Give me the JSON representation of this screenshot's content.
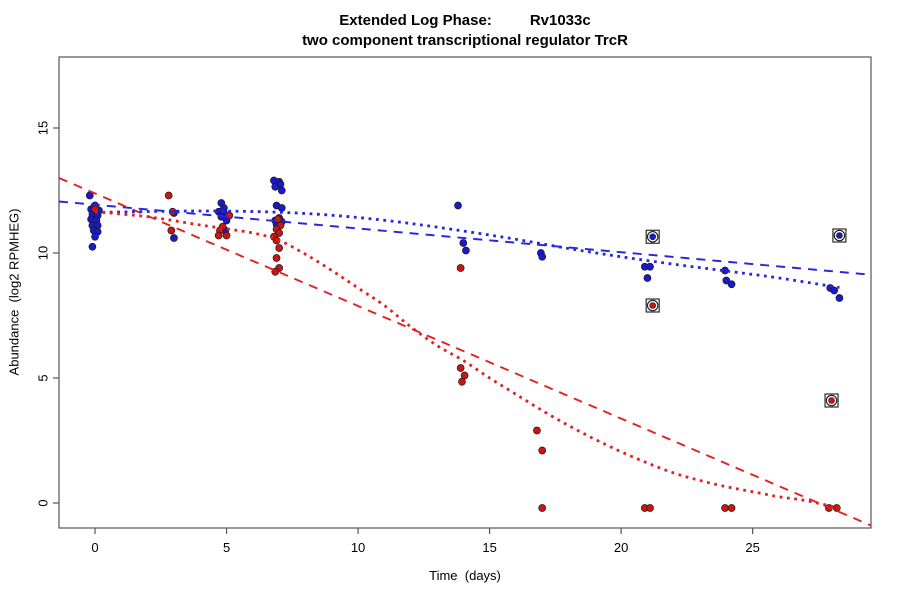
{
  "header": {
    "title_main": "Extended Log Phase:",
    "title_gene": "Rv1033c",
    "subtitle": "two component transcriptional regulator TrcR"
  },
  "chart_data": {
    "type": "scatter",
    "title": "Extended Log Phase:  Rv1033c",
    "subtitle": "two component transcriptional regulator TrcR",
    "xlabel": "Time  (days)",
    "ylabel": "Abundance  (log2 RPMHEG)",
    "x_ticks": [
      0,
      5,
      10,
      15,
      20,
      25
    ],
    "y_ticks": [
      0,
      5,
      10,
      15
    ],
    "xlim": [
      -1.37,
      29.5
    ],
    "ylim": [
      -1.0,
      17.84
    ],
    "grid": "off",
    "legend": "none",
    "colors": {
      "blue_point": "#1a1acc",
      "red_point": "#cc1414",
      "blue_line": "#2626e0",
      "red_line": "#e32020",
      "axis": "#555555",
      "marker_outline": "#1a1a1a"
    },
    "series": [
      {
        "name": "blue-points",
        "kind": "points",
        "color": "#1a1acc",
        "points": [
          [
            -0.2,
            12.3
          ],
          [
            0,
            11.9
          ],
          [
            -0.15,
            11.75
          ],
          [
            0.15,
            11.7
          ],
          [
            -0.1,
            11.55
          ],
          [
            0.1,
            11.5
          ],
          [
            -0.15,
            11.35
          ],
          [
            0.05,
            11.3
          ],
          [
            -0.1,
            11.1
          ],
          [
            0.1,
            11.1
          ],
          [
            -0.05,
            10.9
          ],
          [
            0.1,
            10.85
          ],
          [
            0,
            10.65
          ],
          [
            -0.1,
            10.25
          ],
          [
            3,
            11.6
          ],
          [
            3,
            10.6
          ],
          [
            4.8,
            12.0
          ],
          [
            4.9,
            11.8
          ],
          [
            4.7,
            11.65
          ],
          [
            4.9,
            11.6
          ],
          [
            5.1,
            11.5
          ],
          [
            4.8,
            11.45
          ],
          [
            5,
            11.3
          ],
          [
            4.95,
            10.9
          ],
          [
            6.8,
            12.9
          ],
          [
            7,
            12.85
          ],
          [
            7.05,
            12.75
          ],
          [
            6.85,
            12.65
          ],
          [
            7.1,
            12.5
          ],
          [
            6.9,
            11.9
          ],
          [
            7.1,
            11.8
          ],
          [
            7,
            11.4
          ],
          [
            6.85,
            11.3
          ],
          [
            7.1,
            11.25
          ],
          [
            6.9,
            11.15
          ],
          [
            13.8,
            11.9
          ],
          [
            14,
            10.4
          ],
          [
            14.1,
            10.1
          ],
          [
            16.95,
            10.0
          ],
          [
            17,
            9.85
          ],
          [
            20.9,
            9.45
          ],
          [
            21.1,
            9.45
          ],
          [
            21,
            9.0
          ],
          [
            23.95,
            9.3
          ],
          [
            24,
            8.9
          ],
          [
            24.2,
            8.75
          ],
          [
            27.95,
            8.6
          ],
          [
            28.1,
            8.5
          ],
          [
            28.3,
            8.2
          ]
        ]
      },
      {
        "name": "red-points",
        "kind": "points",
        "color": "#cc1414",
        "points": [
          [
            0,
            11.75
          ],
          [
            2.8,
            12.3
          ],
          [
            2.95,
            11.65
          ],
          [
            2.9,
            10.9
          ],
          [
            5.1,
            11.5
          ],
          [
            4.85,
            11.05
          ],
          [
            4.75,
            10.9
          ],
          [
            4.7,
            10.7
          ],
          [
            5,
            10.7
          ],
          [
            6.95,
            11.35
          ],
          [
            7.05,
            11.1
          ],
          [
            6.9,
            10.95
          ],
          [
            7,
            10.8
          ],
          [
            6.8,
            10.65
          ],
          [
            6.9,
            10.5
          ],
          [
            7,
            10.2
          ],
          [
            6.9,
            9.8
          ],
          [
            7,
            9.4
          ],
          [
            6.85,
            9.25
          ],
          [
            13.9,
            9.4
          ],
          [
            13.9,
            5.4
          ],
          [
            14.05,
            5.1
          ],
          [
            13.95,
            4.85
          ],
          [
            16.8,
            2.9
          ],
          [
            17,
            2.1
          ],
          [
            17,
            -0.2
          ],
          [
            20.9,
            -0.2
          ],
          [
            21.1,
            -0.2
          ],
          [
            23.95,
            -0.2
          ],
          [
            24.2,
            -0.2
          ],
          [
            27.9,
            -0.2
          ],
          [
            28.2,
            -0.2
          ]
        ]
      },
      {
        "name": "blue-circled-outliers",
        "kind": "points-circled",
        "color": "#1a1acc",
        "points": [
          [
            21.2,
            10.65
          ],
          [
            28.3,
            10.7
          ]
        ]
      },
      {
        "name": "red-circled-outliers",
        "kind": "points-circled",
        "color": "#cc1414",
        "points": [
          [
            21.2,
            7.9
          ],
          [
            28.0,
            4.1
          ]
        ]
      },
      {
        "name": "blue-linear-fit",
        "kind": "line-dashed",
        "color": "#2626e0",
        "points": [
          [
            -1.37,
            12.06
          ],
          [
            29.5,
            9.13
          ]
        ]
      },
      {
        "name": "red-linear-fit",
        "kind": "line-dashed",
        "color": "#e32020",
        "points": [
          [
            -1.37,
            13.0
          ],
          [
            29.5,
            -0.9
          ]
        ]
      },
      {
        "name": "blue-loess-fit",
        "kind": "curve-dotted",
        "color": "#2626e0",
        "points": [
          [
            0,
            11.62
          ],
          [
            2,
            11.66
          ],
          [
            4,
            11.68
          ],
          [
            6,
            11.66
          ],
          [
            8,
            11.58
          ],
          [
            10,
            11.42
          ],
          [
            12,
            11.18
          ],
          [
            14,
            10.88
          ],
          [
            16,
            10.55
          ],
          [
            18,
            10.18
          ],
          [
            20,
            9.85
          ],
          [
            22,
            9.55
          ],
          [
            24,
            9.28
          ],
          [
            26,
            9.0
          ],
          [
            28.3,
            8.62
          ]
        ]
      },
      {
        "name": "red-loess-fit",
        "kind": "curve-dotted",
        "color": "#e32020",
        "points": [
          [
            0,
            11.65
          ],
          [
            2,
            11.45
          ],
          [
            4,
            11.12
          ],
          [
            6,
            10.8
          ],
          [
            7,
            10.5
          ],
          [
            8,
            9.95
          ],
          [
            9,
            9.3
          ],
          [
            10,
            8.6
          ],
          [
            11,
            7.9
          ],
          [
            12,
            7.05
          ],
          [
            13,
            6.3
          ],
          [
            14,
            5.7
          ],
          [
            15,
            5.0
          ],
          [
            16,
            4.35
          ],
          [
            17,
            3.7
          ],
          [
            18,
            3.1
          ],
          [
            19,
            2.55
          ],
          [
            20,
            2.05
          ],
          [
            21,
            1.6
          ],
          [
            22,
            1.2
          ],
          [
            23,
            0.9
          ],
          [
            24,
            0.65
          ],
          [
            25,
            0.45
          ],
          [
            26,
            0.25
          ],
          [
            27,
            0.1
          ],
          [
            28.3,
            -0.2
          ]
        ]
      }
    ]
  }
}
